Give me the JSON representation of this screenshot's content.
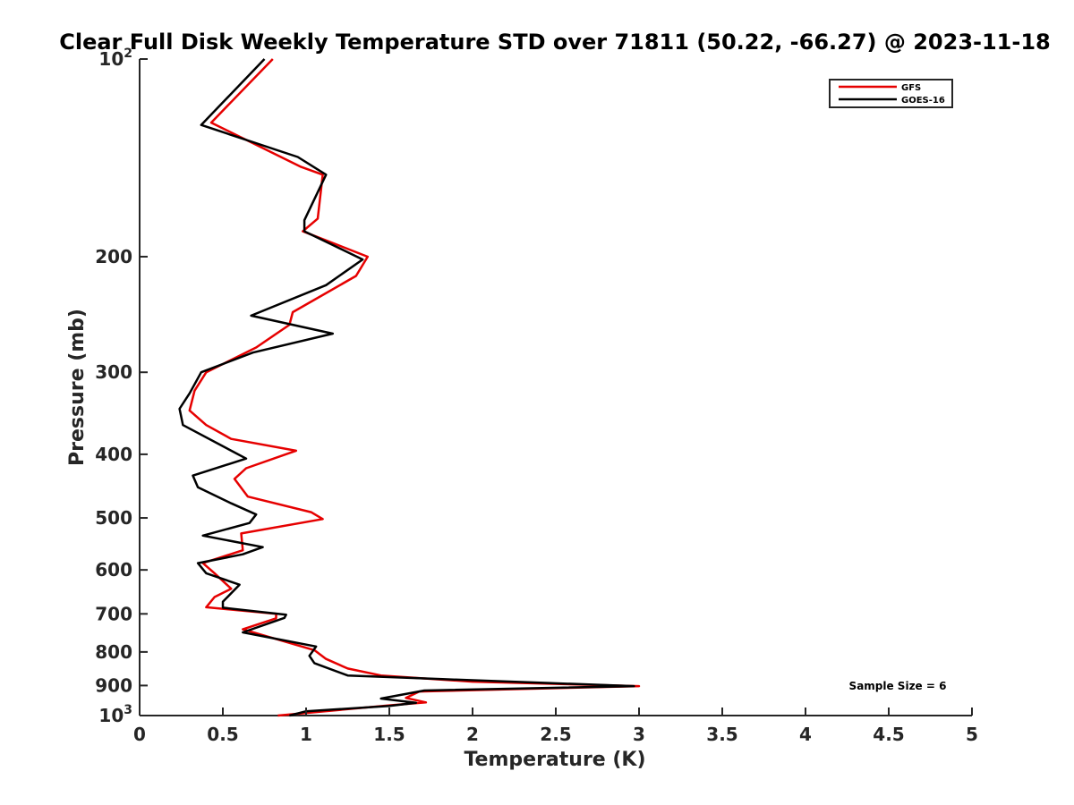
{
  "chart_data": {
    "type": "line",
    "title": "Clear Full Disk Weekly Temperature STD over 71811 (50.22, -66.27) @ 2023-11-18",
    "xlabel": "Temperature (K)",
    "ylabel": "Pressure (mb)",
    "xlim": [
      0,
      5
    ],
    "ylim": [
      100,
      1000
    ],
    "yscale": "log",
    "y_reversed": true,
    "x_ticks": [
      "0",
      "0.5",
      "1",
      "1.5",
      "2",
      "2.5",
      "3",
      "3.5",
      "4",
      "4.5",
      "5"
    ],
    "x_tick_values": [
      0,
      0.5,
      1,
      1.5,
      2,
      2.5,
      3,
      3.5,
      4,
      4.5,
      5
    ],
    "y_tick_values": [
      100,
      200,
      300,
      400,
      500,
      600,
      700,
      800,
      900,
      1000
    ],
    "y_ticks": [
      "200",
      "300",
      "400",
      "500",
      "600",
      "700",
      "800",
      "900"
    ],
    "y_tick_exponent": {
      "base": "10",
      "min_exp": "2",
      "max_exp": "3"
    },
    "legend_position": "top-right",
    "grid": false,
    "annotation": "Sample Size = 6",
    "series": [
      {
        "name": "GFS",
        "color": "#e60000",
        "points": [
          [
            0.8,
            100
          ],
          [
            0.43,
            125
          ],
          [
            0.97,
            146
          ],
          [
            1.1,
            150
          ],
          [
            1.07,
            175
          ],
          [
            0.98,
            183
          ],
          [
            1.37,
            200
          ],
          [
            1.3,
            214
          ],
          [
            0.92,
            243
          ],
          [
            0.9,
            254
          ],
          [
            0.7,
            275
          ],
          [
            0.4,
            300
          ],
          [
            0.33,
            320
          ],
          [
            0.3,
            343
          ],
          [
            0.4,
            361
          ],
          [
            0.55,
            379
          ],
          [
            0.94,
            395
          ],
          [
            0.64,
            420
          ],
          [
            0.57,
            436
          ],
          [
            0.65,
            464
          ],
          [
            1.03,
            490
          ],
          [
            1.1,
            502
          ],
          [
            0.61,
            528
          ],
          [
            0.62,
            560
          ],
          [
            0.38,
            586
          ],
          [
            0.45,
            607
          ],
          [
            0.55,
            641
          ],
          [
            0.45,
            660
          ],
          [
            0.4,
            684
          ],
          [
            0.82,
            700
          ],
          [
            0.82,
            711
          ],
          [
            0.62,
            739
          ],
          [
            1.05,
            795
          ],
          [
            1.12,
            820
          ],
          [
            1.25,
            848
          ],
          [
            1.45,
            869
          ],
          [
            2.0,
            888
          ],
          [
            3.0,
            902
          ],
          [
            1.68,
            919
          ],
          [
            1.6,
            940
          ],
          [
            1.72,
            955
          ],
          [
            1.5,
            965
          ],
          [
            0.83,
            1000
          ]
        ]
      },
      {
        "name": "GOES-16",
        "color": "#000000",
        "points": [
          [
            0.75,
            100
          ],
          [
            0.37,
            126
          ],
          [
            0.95,
            141
          ],
          [
            1.12,
            150
          ],
          [
            0.99,
            176
          ],
          [
            0.99,
            183
          ],
          [
            1.34,
            202
          ],
          [
            1.12,
            221
          ],
          [
            0.67,
            246
          ],
          [
            1.16,
            262
          ],
          [
            0.68,
            280
          ],
          [
            0.37,
            300
          ],
          [
            0.3,
            323
          ],
          [
            0.24,
            341
          ],
          [
            0.26,
            361
          ],
          [
            0.64,
            406
          ],
          [
            0.32,
            431
          ],
          [
            0.35,
            449
          ],
          [
            0.55,
            475
          ],
          [
            0.7,
            494
          ],
          [
            0.66,
            509
          ],
          [
            0.38,
            532
          ],
          [
            0.74,
            554
          ],
          [
            0.62,
            568
          ],
          [
            0.35,
            586
          ],
          [
            0.4,
            607
          ],
          [
            0.6,
            632
          ],
          [
            0.5,
            671
          ],
          [
            0.5,
            685
          ],
          [
            0.88,
            702
          ],
          [
            0.87,
            710
          ],
          [
            0.62,
            747
          ],
          [
            1.06,
            785
          ],
          [
            1.02,
            811
          ],
          [
            1.05,
            832
          ],
          [
            1.25,
            869
          ],
          [
            1.82,
            880
          ],
          [
            2.97,
            902
          ],
          [
            1.71,
            916
          ],
          [
            1.45,
            942
          ],
          [
            1.66,
            956
          ],
          [
            1.5,
            967
          ],
          [
            1.0,
            985
          ],
          [
            0.9,
            1000
          ]
        ]
      }
    ]
  }
}
